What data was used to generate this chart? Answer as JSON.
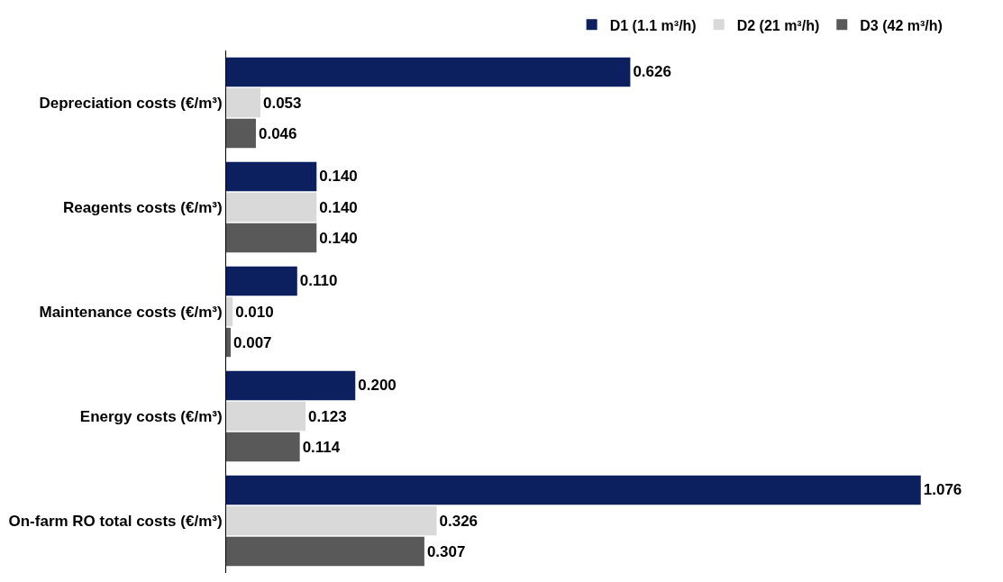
{
  "chart_data": {
    "type": "bar",
    "orientation": "horizontal",
    "legend": "top",
    "categories": [
      "Depreciation costs (€/m³)",
      "Reagents costs (€/m³)",
      "Maintenance costs (€/m³)",
      "Energy costs (€/m³)",
      "On-farm RO total costs (€/m³)"
    ],
    "series": [
      {
        "name": "D1 (1.1 m³/h)",
        "color": "#0c1f5e",
        "values": [
          0.626,
          0.14,
          0.11,
          0.2,
          1.076
        ],
        "value_labels": [
          "0.626",
          "0.140",
          "0.110",
          "0.200",
          "1.076"
        ]
      },
      {
        "name": "D2 (21 m³/h)",
        "color": "#d9d9d9",
        "values": [
          0.053,
          0.14,
          0.01,
          0.123,
          0.326
        ],
        "value_labels": [
          "0.053",
          "0.140",
          "0.010",
          "0.123",
          "0.326"
        ]
      },
      {
        "name": "D3 (42 m³/h)",
        "color": "#595959",
        "values": [
          0.046,
          0.14,
          0.007,
          0.114,
          0.307
        ],
        "value_labels": [
          "0.046",
          "0.140",
          "0.007",
          "0.114",
          "0.307"
        ]
      }
    ]
  }
}
